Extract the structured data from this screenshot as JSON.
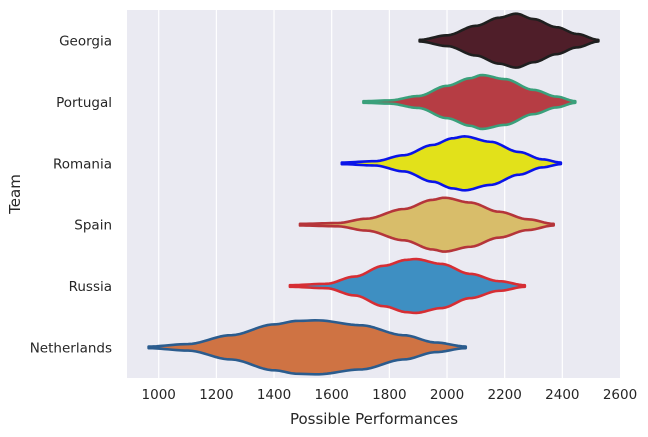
{
  "chart_data": {
    "type": "violin",
    "orientation": "horizontal",
    "xlabel": "Possible Performances",
    "ylabel": "Team",
    "xlim": [
      890,
      2600
    ],
    "xticks": [
      1000,
      1200,
      1400,
      1600,
      1800,
      2000,
      2200,
      2400,
      2600
    ],
    "grid": true,
    "background": "#eaeaf2",
    "grid_color": "#ffffff",
    "series": [
      {
        "category": "Georgia",
        "fill": "#4f1e29",
        "edge": "#1f1f1f",
        "min": 1905,
        "max": 2525,
        "profile": [
          [
            1905,
            0.03
          ],
          [
            2000,
            0.2
          ],
          [
            2100,
            0.55
          ],
          [
            2180,
            0.85
          ],
          [
            2240,
            1.0
          ],
          [
            2300,
            0.8
          ],
          [
            2380,
            0.5
          ],
          [
            2450,
            0.25
          ],
          [
            2525,
            0.03
          ]
        ]
      },
      {
        "category": "Portugal",
        "fill": "#b63d44",
        "edge": "#3aa07b",
        "min": 1710,
        "max": 2445,
        "profile": [
          [
            1710,
            0.03
          ],
          [
            1800,
            0.06
          ],
          [
            1900,
            0.22
          ],
          [
            2000,
            0.6
          ],
          [
            2080,
            0.88
          ],
          [
            2120,
            1.0
          ],
          [
            2200,
            0.85
          ],
          [
            2300,
            0.45
          ],
          [
            2380,
            0.2
          ],
          [
            2445,
            0.03
          ]
        ]
      },
      {
        "category": "Romania",
        "fill": "#e2e11a",
        "edge": "#0a14e8",
        "min": 1635,
        "max": 2395,
        "profile": [
          [
            1635,
            0.03
          ],
          [
            1750,
            0.08
          ],
          [
            1850,
            0.3
          ],
          [
            1950,
            0.68
          ],
          [
            2020,
            0.93
          ],
          [
            2060,
            1.0
          ],
          [
            2150,
            0.8
          ],
          [
            2250,
            0.42
          ],
          [
            2330,
            0.15
          ],
          [
            2395,
            0.03
          ]
        ]
      },
      {
        "category": "Spain",
        "fill": "#d8bd6a",
        "edge": "#b5353a",
        "min": 1490,
        "max": 2370,
        "profile": [
          [
            1490,
            0.03
          ],
          [
            1620,
            0.06
          ],
          [
            1720,
            0.22
          ],
          [
            1850,
            0.58
          ],
          [
            1950,
            0.92
          ],
          [
            1990,
            1.0
          ],
          [
            2080,
            0.82
          ],
          [
            2180,
            0.48
          ],
          [
            2280,
            0.2
          ],
          [
            2370,
            0.03
          ]
        ]
      },
      {
        "category": "Russia",
        "fill": "#3e8fc2",
        "edge": "#d62e34",
        "min": 1455,
        "max": 2270,
        "profile": [
          [
            1455,
            0.03
          ],
          [
            1580,
            0.08
          ],
          [
            1680,
            0.35
          ],
          [
            1780,
            0.75
          ],
          [
            1860,
            0.97
          ],
          [
            1890,
            1.0
          ],
          [
            1980,
            0.82
          ],
          [
            2080,
            0.45
          ],
          [
            2180,
            0.18
          ],
          [
            2270,
            0.03
          ]
        ]
      },
      {
        "category": "Netherlands",
        "fill": "#cf7343",
        "edge": "#2b5c8e",
        "min": 965,
        "max": 2065,
        "profile": [
          [
            965,
            0.03
          ],
          [
            1100,
            0.12
          ],
          [
            1250,
            0.45
          ],
          [
            1400,
            0.85
          ],
          [
            1480,
            0.98
          ],
          [
            1550,
            1.0
          ],
          [
            1700,
            0.82
          ],
          [
            1850,
            0.45
          ],
          [
            1960,
            0.18
          ],
          [
            2065,
            0.03
          ]
        ]
      }
    ]
  }
}
